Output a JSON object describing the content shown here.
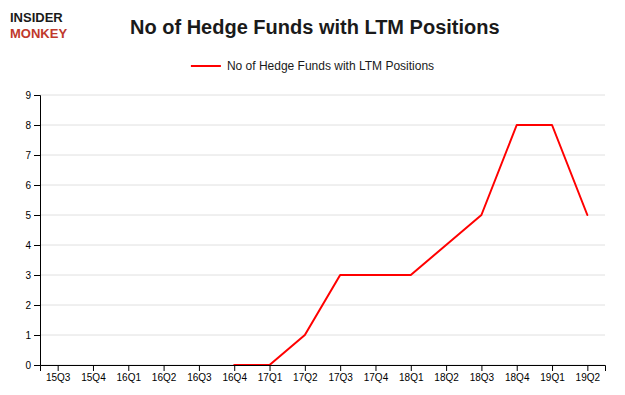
{
  "chart_data": {
    "type": "line",
    "title": "No of Hedge Funds with LTM Positions",
    "annotations": [
      "INSIDER",
      "MONKEY"
    ],
    "categories": [
      "15Q3",
      "15Q4",
      "16Q1",
      "16Q2",
      "16Q3",
      "16Q4",
      "17Q1",
      "17Q2",
      "17Q3",
      "17Q4",
      "18Q1",
      "18Q2",
      "18Q3",
      "18Q4",
      "19Q1",
      "19Q2"
    ],
    "series": [
      {
        "name": "No of Hedge Funds with LTM Positions",
        "color": "#ff0000",
        "values": [
          null,
          null,
          null,
          null,
          null,
          0,
          0,
          1,
          3,
          3,
          3,
          4,
          5,
          8,
          8,
          5
        ]
      }
    ],
    "ylim": [
      0,
      9
    ],
    "yticks": [
      0,
      1,
      2,
      3,
      4,
      5,
      6,
      7,
      8,
      9
    ],
    "grid": true,
    "legend": "top"
  }
}
